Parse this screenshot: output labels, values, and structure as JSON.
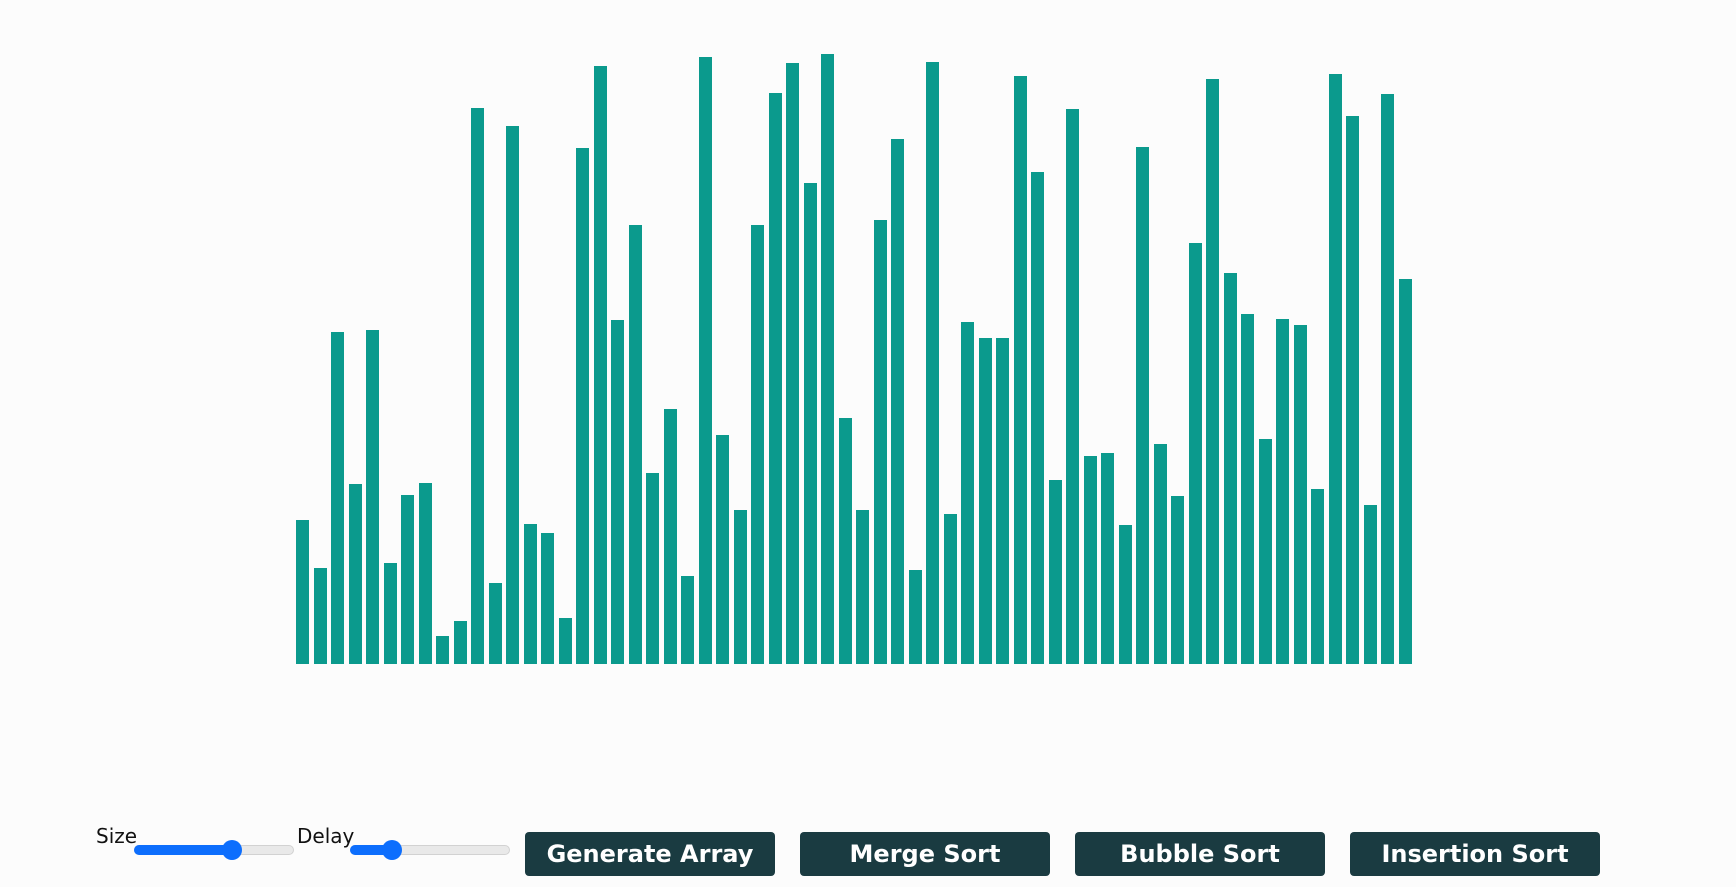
{
  "controls": {
    "size_label": "Size",
    "size_value": 0.61,
    "delay_label": "Delay",
    "delay_value": 0.26,
    "buttons": {
      "generate": "Generate Array",
      "merge": "Merge Sort",
      "bubble": "Bubble Sort",
      "insertion": "Insertion Sort"
    }
  },
  "colors": {
    "bar": "#0b9a8d",
    "button_bg": "#1a3b41",
    "slider_accent": "#0d6efd"
  },
  "array_values": [
    144,
    96,
    332,
    180,
    334,
    101,
    169,
    181,
    28,
    43,
    556,
    81,
    538,
    140,
    131,
    46,
    516,
    598,
    344,
    439,
    191,
    255,
    88,
    607,
    229,
    154,
    439,
    571,
    601,
    481,
    610,
    246,
    154,
    444,
    525,
    94,
    602,
    150,
    342,
    326,
    326,
    588,
    492,
    184,
    555,
    208,
    211,
    139,
    517,
    220,
    168,
    421,
    585,
    391,
    350,
    225,
    345,
    339,
    175,
    590,
    548,
    159,
    570,
    385
  ],
  "array_max": 610
}
